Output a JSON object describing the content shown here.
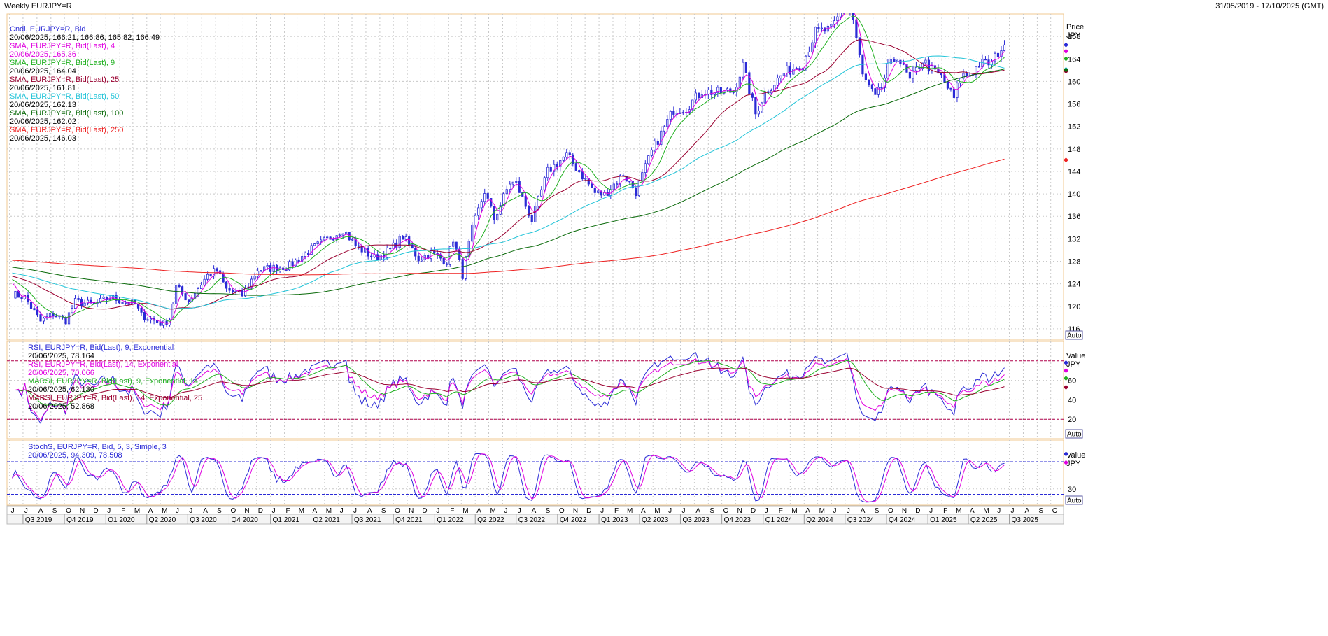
{
  "window": {
    "title": "Weekly EURJPY=R",
    "date_range": "31/05/2019 - 17/10/2025 (GMT)"
  },
  "colors": {
    "price": "#2b2bd6",
    "sma4": "#e000e0",
    "sma9": "#20b020",
    "sma25": "#9a0030",
    "sma50": "#22c4d8",
    "sma100": "#0a6a0a",
    "sma250": "#ee2222",
    "rsi9": "#2b2bd6",
    "rsi14": "#e000e0",
    "marsi9": "#20b020",
    "marsi14": "#9a0030",
    "stoch_k": "#2b2bd6",
    "stoch_d": "#e000e0",
    "grid": "#c8c8c8",
    "panel_border": "#f0c890"
  },
  "chart_data": [
    {
      "type": "candlestick",
      "title": "",
      "ylabel": "Price",
      "unit": "JPY",
      "ylim": [
        114,
        172
      ],
      "yticks": [
        116,
        120,
        124,
        128,
        132,
        136,
        140,
        144,
        148,
        152,
        156,
        160,
        164,
        168
      ],
      "grid": true,
      "scale_button": "Auto",
      "legend_position": "top-left",
      "x_range": [
        "2019-05-31",
        "2025-10-17"
      ],
      "legend": [
        {
          "label": "Cndl, EURJPY=R, Bid",
          "value": "20/06/2025, 166.21, 166.86, 165.82, 166.49",
          "color_key": "price"
        },
        {
          "label": "SMA, EURJPY=R, Bid(Last),  4",
          "value": "20/06/2025, 165.36",
          "color_key": "sma4"
        },
        {
          "label": "SMA, EURJPY=R, Bid(Last),  9",
          "value": "20/06/2025, 164.04",
          "color_key": "sma9"
        },
        {
          "label": "SMA, EURJPY=R, Bid(Last),  25",
          "value": "20/06/2025, 161.81",
          "color_key": "sma25"
        },
        {
          "label": "SMA, EURJPY=R, Bid(Last),  50",
          "value": "20/06/2025, 162.13",
          "color_key": "sma50"
        },
        {
          "label": "SMA, EURJPY=R, Bid(Last),  100",
          "value": "20/06/2025, 162.02",
          "color_key": "sma100"
        },
        {
          "label": "SMA, EURJPY=R, Bid(Last),  250",
          "value": "20/06/2025, 146.03",
          "color_key": "sma250"
        }
      ],
      "close_anchors": [
        [
          "2019-06-07",
          122.2
        ],
        [
          "2019-07-05",
          121.6
        ],
        [
          "2019-08-09",
          117.3
        ],
        [
          "2019-09-06",
          118.6
        ],
        [
          "2019-10-04",
          117.5
        ],
        [
          "2019-10-25",
          120.8
        ],
        [
          "2019-12-06",
          120.3
        ],
        [
          "2020-01-10",
          121.6
        ],
        [
          "2020-03-06",
          120.3
        ],
        [
          "2020-03-20",
          118.4
        ],
        [
          "2020-05-08",
          116.8
        ],
        [
          "2020-05-22",
          117.8
        ],
        [
          "2020-06-05",
          123.5
        ],
        [
          "2020-07-03",
          121.0
        ],
        [
          "2020-08-14",
          125.5
        ],
        [
          "2020-09-04",
          126.4
        ],
        [
          "2020-09-25",
          123.0
        ],
        [
          "2020-10-30",
          122.0
        ],
        [
          "2020-12-04",
          126.5
        ],
        [
          "2021-01-08",
          126.8
        ],
        [
          "2021-02-12",
          127.2
        ],
        [
          "2021-03-26",
          129.8
        ],
        [
          "2021-05-07",
          131.9
        ],
        [
          "2021-06-11",
          133.7
        ],
        [
          "2021-07-09",
          130.8
        ],
        [
          "2021-08-20",
          128.6
        ],
        [
          "2021-09-24",
          130.0
        ],
        [
          "2021-10-22",
          132.4
        ],
        [
          "2021-11-26",
          128.5
        ],
        [
          "2021-12-24",
          129.4
        ],
        [
          "2022-01-28",
          128.0
        ],
        [
          "2022-02-11",
          132.0
        ],
        [
          "2022-03-04",
          125.6
        ],
        [
          "2022-03-25",
          133.7
        ],
        [
          "2022-04-22",
          140.5
        ],
        [
          "2022-05-13",
          135.5
        ],
        [
          "2022-06-17",
          142.0
        ],
        [
          "2022-07-01",
          141.8
        ],
        [
          "2022-08-05",
          135.3
        ],
        [
          "2022-09-09",
          144.0
        ],
        [
          "2022-10-21",
          146.9
        ],
        [
          "2022-11-18",
          144.0
        ],
        [
          "2022-12-23",
          140.2
        ],
        [
          "2023-01-13",
          139.9
        ],
        [
          "2023-02-24",
          143.5
        ],
        [
          "2023-03-24",
          140.4
        ],
        [
          "2023-04-28",
          147.5
        ],
        [
          "2023-06-16",
          155.0
        ],
        [
          "2023-07-14",
          155.3
        ],
        [
          "2023-08-18",
          158.3
        ],
        [
          "2023-09-22",
          158.0
        ],
        [
          "2023-10-27",
          158.3
        ],
        [
          "2023-11-17",
          162.8
        ],
        [
          "2023-12-15",
          154.2
        ],
        [
          "2024-01-05",
          158.0
        ],
        [
          "2024-02-16",
          161.5
        ],
        [
          "2024-03-29",
          163.3
        ],
        [
          "2024-04-26",
          168.8
        ],
        [
          "2024-05-31",
          169.2
        ],
        [
          "2024-07-05",
          174.1
        ],
        [
          "2024-07-19",
          171.0
        ],
        [
          "2024-08-09",
          161.0
        ],
        [
          "2024-09-06",
          157.0
        ],
        [
          "2024-09-20",
          159.0
        ],
        [
          "2024-10-04",
          162.2
        ],
        [
          "2024-10-25",
          164.6
        ],
        [
          "2024-11-22",
          160.1
        ],
        [
          "2024-12-20",
          163.8
        ],
        [
          "2025-01-10",
          162.0
        ],
        [
          "2025-01-31",
          160.8
        ],
        [
          "2025-02-28",
          157.0
        ],
        [
          "2025-03-14",
          161.0
        ],
        [
          "2025-04-04",
          161.2
        ],
        [
          "2025-04-25",
          163.1
        ],
        [
          "2025-05-23",
          163.3
        ],
        [
          "2025-06-06",
          165.2
        ],
        [
          "2025-06-20",
          166.49
        ]
      ]
    },
    {
      "type": "line",
      "title": "",
      "ylabel": "Value",
      "unit": "JPY",
      "ylim": [
        0,
        100
      ],
      "yticks": [
        20,
        40,
        60
      ],
      "reference_lines": [
        20,
        80
      ],
      "grid": true,
      "scale_button": "Auto",
      "legend_position": "top-left",
      "legend": [
        {
          "label": "RSI, EURJPY=R, Bid(Last),  9, Exponential",
          "value": "20/06/2025, 78.164",
          "color_key": "rsi9"
        },
        {
          "label": "RSI, EURJPY=R, Bid(Last),  14, Exponential",
          "value": "20/06/2025, 70.066",
          "color_key": "rsi14"
        },
        {
          "label": "MARSI, EURJPY=R, Bid(Last),  9, Exponential, 14",
          "value": "20/06/2025, 62.130",
          "color_key": "marsi9"
        },
        {
          "label": "MARSI, EURJPY=R, Bid(Last),  14, Exponential, 25",
          "value": "20/06/2025, 52.868",
          "color_key": "marsi14"
        }
      ]
    },
    {
      "type": "line",
      "title": "",
      "ylabel": "Value",
      "unit": "JPY",
      "ylim": [
        0,
        120
      ],
      "yticks": [
        30
      ],
      "reference_lines": [
        20,
        80
      ],
      "grid": true,
      "scale_button": "Auto",
      "legend_position": "top-left",
      "legend": [
        {
          "label": "StochS, EURJPY=R, Bid,  5, 3, Simple, 3",
          "value": "20/06/2025, 94.309, 78.508",
          "color_key": "stoch_k"
        }
      ]
    }
  ],
  "x_axis": {
    "month_labels": [
      "J",
      "J",
      "A",
      "S",
      "O",
      "N",
      "D",
      "J",
      "F",
      "M",
      "A",
      "M",
      "J",
      "J",
      "A",
      "S",
      "O",
      "N",
      "D",
      "J",
      "F",
      "M",
      "A",
      "M",
      "J",
      "J",
      "A",
      "S",
      "O",
      "N",
      "D",
      "J",
      "F",
      "M",
      "A",
      "M",
      "J",
      "J",
      "A",
      "S",
      "O",
      "N",
      "D",
      "J",
      "F",
      "M",
      "A",
      "M",
      "J",
      "J",
      "A",
      "S",
      "O",
      "N",
      "D",
      "J",
      "F",
      "M",
      "A",
      "M",
      "J",
      "J",
      "A",
      "S",
      "O",
      "N",
      "D",
      "J",
      "F",
      "M",
      "A",
      "M",
      "J",
      "J",
      "A",
      "S",
      "O"
    ],
    "month_start": "2019-06",
    "quarter_labels": [
      "Q3 2019",
      "Q4 2019",
      "Q1 2020",
      "Q2 2020",
      "Q3 2020",
      "Q4 2020",
      "Q1 2021",
      "Q2 2021",
      "Q3 2021",
      "Q4 2021",
      "Q1 2022",
      "Q2 2022",
      "Q3 2022",
      "Q4 2022",
      "Q1 2023",
      "Q2 2023",
      "Q3 2023",
      "Q4 2023",
      "Q1 2024",
      "Q2 2024",
      "Q3 2024",
      "Q4 2024",
      "Q1 2025",
      "Q2 2025",
      "Q3 2025"
    ],
    "quarter_start": "2019-07"
  }
}
